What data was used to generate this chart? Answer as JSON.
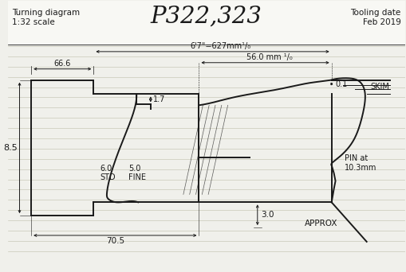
{
  "title": "P322,323",
  "subtitle_left": "Turning diagram\n1:32 scale",
  "subtitle_right": "Tooling date\nFeb 2019",
  "bg_color": "#f0f0eb",
  "line_color": "#1a1a1a",
  "dim_66_6": "66.6",
  "dim_67": "6'7\"=627mm¹/₀",
  "dim_56": "56.0 mm ¹/₀",
  "dim_01": "0.1",
  "dim_17": "1.7",
  "dim_85": "8.5",
  "dim_30": "3.0",
  "dim_60": "6.0\nSTD",
  "dim_50": "5.0\nFINE",
  "dim_705": "70.5",
  "label_skim": "SKIM",
  "label_pin": "PIN at\n10.3mm",
  "label_approx": "APPROX",
  "ruled_lines_y": [
    57,
    70,
    83,
    96,
    109,
    122,
    135,
    148,
    161,
    174,
    187,
    200,
    213,
    226,
    239,
    252,
    265,
    278,
    291,
    304,
    317
  ],
  "ruled_line_color": "#c8c8b8"
}
